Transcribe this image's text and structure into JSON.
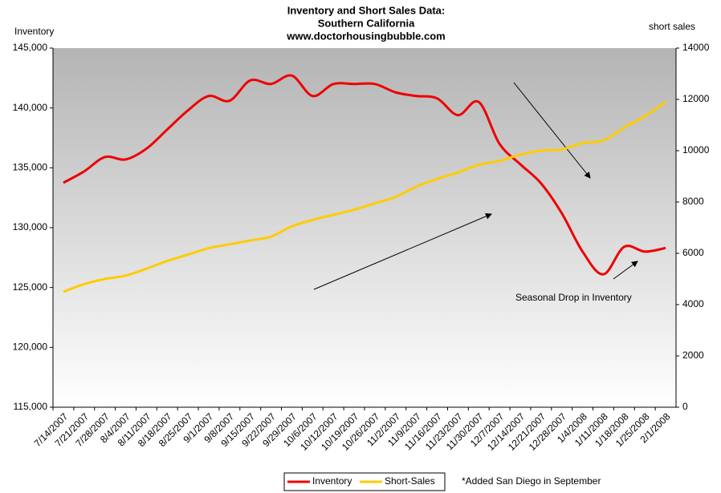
{
  "chart_data": {
    "type": "line",
    "title": [
      "Inventory and Short Sales Data:",
      "Southern California",
      "www.doctorhousingbubble.com"
    ],
    "y_label": "Inventory",
    "y2_label": "short sales",
    "annotations": [
      "Seasonal Drop in Inventory",
      "*Added San Diego in September"
    ],
    "categories": [
      "7/14/2007",
      "7/21/2007",
      "7/28/2007",
      "8/4/2007",
      "8/11/2007",
      "8/18/2007",
      "8/25/2007",
      "9/1/2007",
      "9/8/2007",
      "9/15/2007",
      "9/22/2007",
      "9/29/2007",
      "10/6/2007",
      "10/12/2007",
      "10/19/2007",
      "10/26/2007",
      "11/2/2007",
      "11/9/2007",
      "11/16/2007",
      "11/23/2007",
      "11/30/2007",
      "12/7/2007",
      "12/14/2007",
      "12/21/2007",
      "12/28/2007",
      "1/4/2008",
      "1/11/2008",
      "1/18/2008",
      "1/25/2008",
      "2/1/2008"
    ],
    "series": [
      {
        "name": "Inventory",
        "color": "#ee0000",
        "axis": "y",
        "values": [
          133750,
          134700,
          135900,
          135700,
          136600,
          138200,
          139800,
          141000,
          140600,
          142300,
          142000,
          142700,
          141000,
          142000,
          142000,
          142000,
          141300,
          141000,
          140800,
          139400,
          140500,
          137000,
          135300,
          133700,
          131200,
          128000,
          126100,
          128400,
          128000,
          128300
        ]
      },
      {
        "name": "Short-Sales",
        "color": "#ffcc00",
        "axis": "y2",
        "values": [
          4500,
          4800,
          5000,
          5130,
          5400,
          5700,
          5950,
          6200,
          6350,
          6500,
          6650,
          7050,
          7300,
          7500,
          7700,
          7950,
          8200,
          8600,
          8900,
          9150,
          9450,
          9600,
          9850,
          10000,
          10050,
          10300,
          10400,
          10900,
          11350,
          11900
        ]
      }
    ],
    "ylim": [
      115000,
      145000
    ],
    "yticks": [
      {
        "value": 115000,
        "label": "115,000"
      },
      {
        "value": 120000,
        "label": "120,000"
      },
      {
        "value": 125000,
        "label": "125,000"
      },
      {
        "value": 130000,
        "label": "130,000"
      },
      {
        "value": 135000,
        "label": "135,000"
      },
      {
        "value": 140000,
        "label": "140,000"
      },
      {
        "value": 145000,
        "label": "145,000"
      }
    ],
    "y2lim": [
      0,
      14000
    ],
    "y2ticks": [
      0,
      2000,
      4000,
      6000,
      8000,
      10000,
      12000,
      14000
    ],
    "legend": "bottom"
  }
}
